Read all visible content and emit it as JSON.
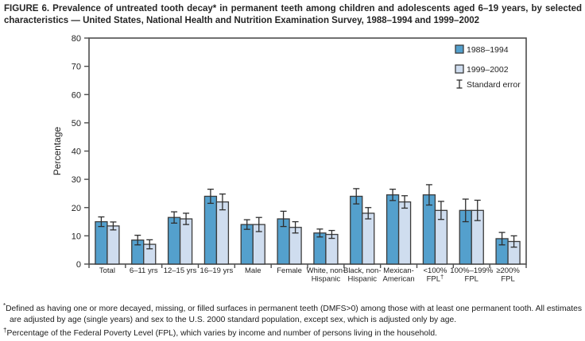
{
  "figure": {
    "title": "FIGURE 6. Prevalence of untreated tooth decay* in permanent teeth among children and adolescents aged 6–19 years, by selected characteristics — United States, National Health and Nutrition Examination Survey, 1988–1994 and 1999–2002"
  },
  "chart_data": {
    "type": "bar",
    "title": "Prevalence of untreated tooth decay in permanent teeth among children and adolescents aged 6–19 years, by selected characteristics",
    "xlabel": "",
    "ylabel": "Percentage",
    "ylim": [
      0,
      80
    ],
    "ytick_step": 10,
    "grid": false,
    "legend_position": "top-right",
    "error_legend_label": "Standard error",
    "categories": [
      "Total",
      "6–11 yrs",
      "12–15 yrs",
      "16–19 yrs",
      "Male",
      "Female",
      "White, non-\nHispanic",
      "Black, non-\nHispanic",
      "Mexican-\nAmerican",
      "<100%\nFPL†",
      "100%–199%\nFPL",
      "≥200%\nFPL"
    ],
    "series": [
      {
        "name": "1988–1994",
        "color": "#54A0CD",
        "values": [
          15,
          8.5,
          16.5,
          24,
          14,
          16,
          11,
          24,
          24.5,
          24.5,
          19,
          9
        ],
        "standard_errors": [
          1.7,
          1.7,
          2,
          2.5,
          1.7,
          2.7,
          1.4,
          2.7,
          2,
          3.6,
          4,
          2.2
        ]
      },
      {
        "name": "1999–2002",
        "color": "#CFDDEF",
        "values": [
          13.5,
          7,
          16,
          22,
          14,
          13,
          10.5,
          18,
          22,
          19,
          19,
          8
        ],
        "standard_errors": [
          1.4,
          1.6,
          2,
          2.8,
          2.5,
          2,
          1.4,
          2,
          2.2,
          3.2,
          3.6,
          2
        ]
      }
    ]
  },
  "footnotes": [
    {
      "marker": "*",
      "text": "Defined as having one or more decayed, missing, or filled surfaces in permanent teeth (DMFS>0) among those with at least one permanent tooth. All estimates are adjusted by age (single years) and sex to the U.S. 2000 standard population, except sex, which is adjusted only by age."
    },
    {
      "marker": "†",
      "text": "Percentage of the Federal Poverty Level (FPL), which varies by income and number of persons living in the household."
    }
  ],
  "colors": {
    "bar_stroke": "#3B3B3B",
    "frame": "#4D4D4D",
    "error_bar": "#2E2E2E",
    "text": "#1F1F1F"
  }
}
